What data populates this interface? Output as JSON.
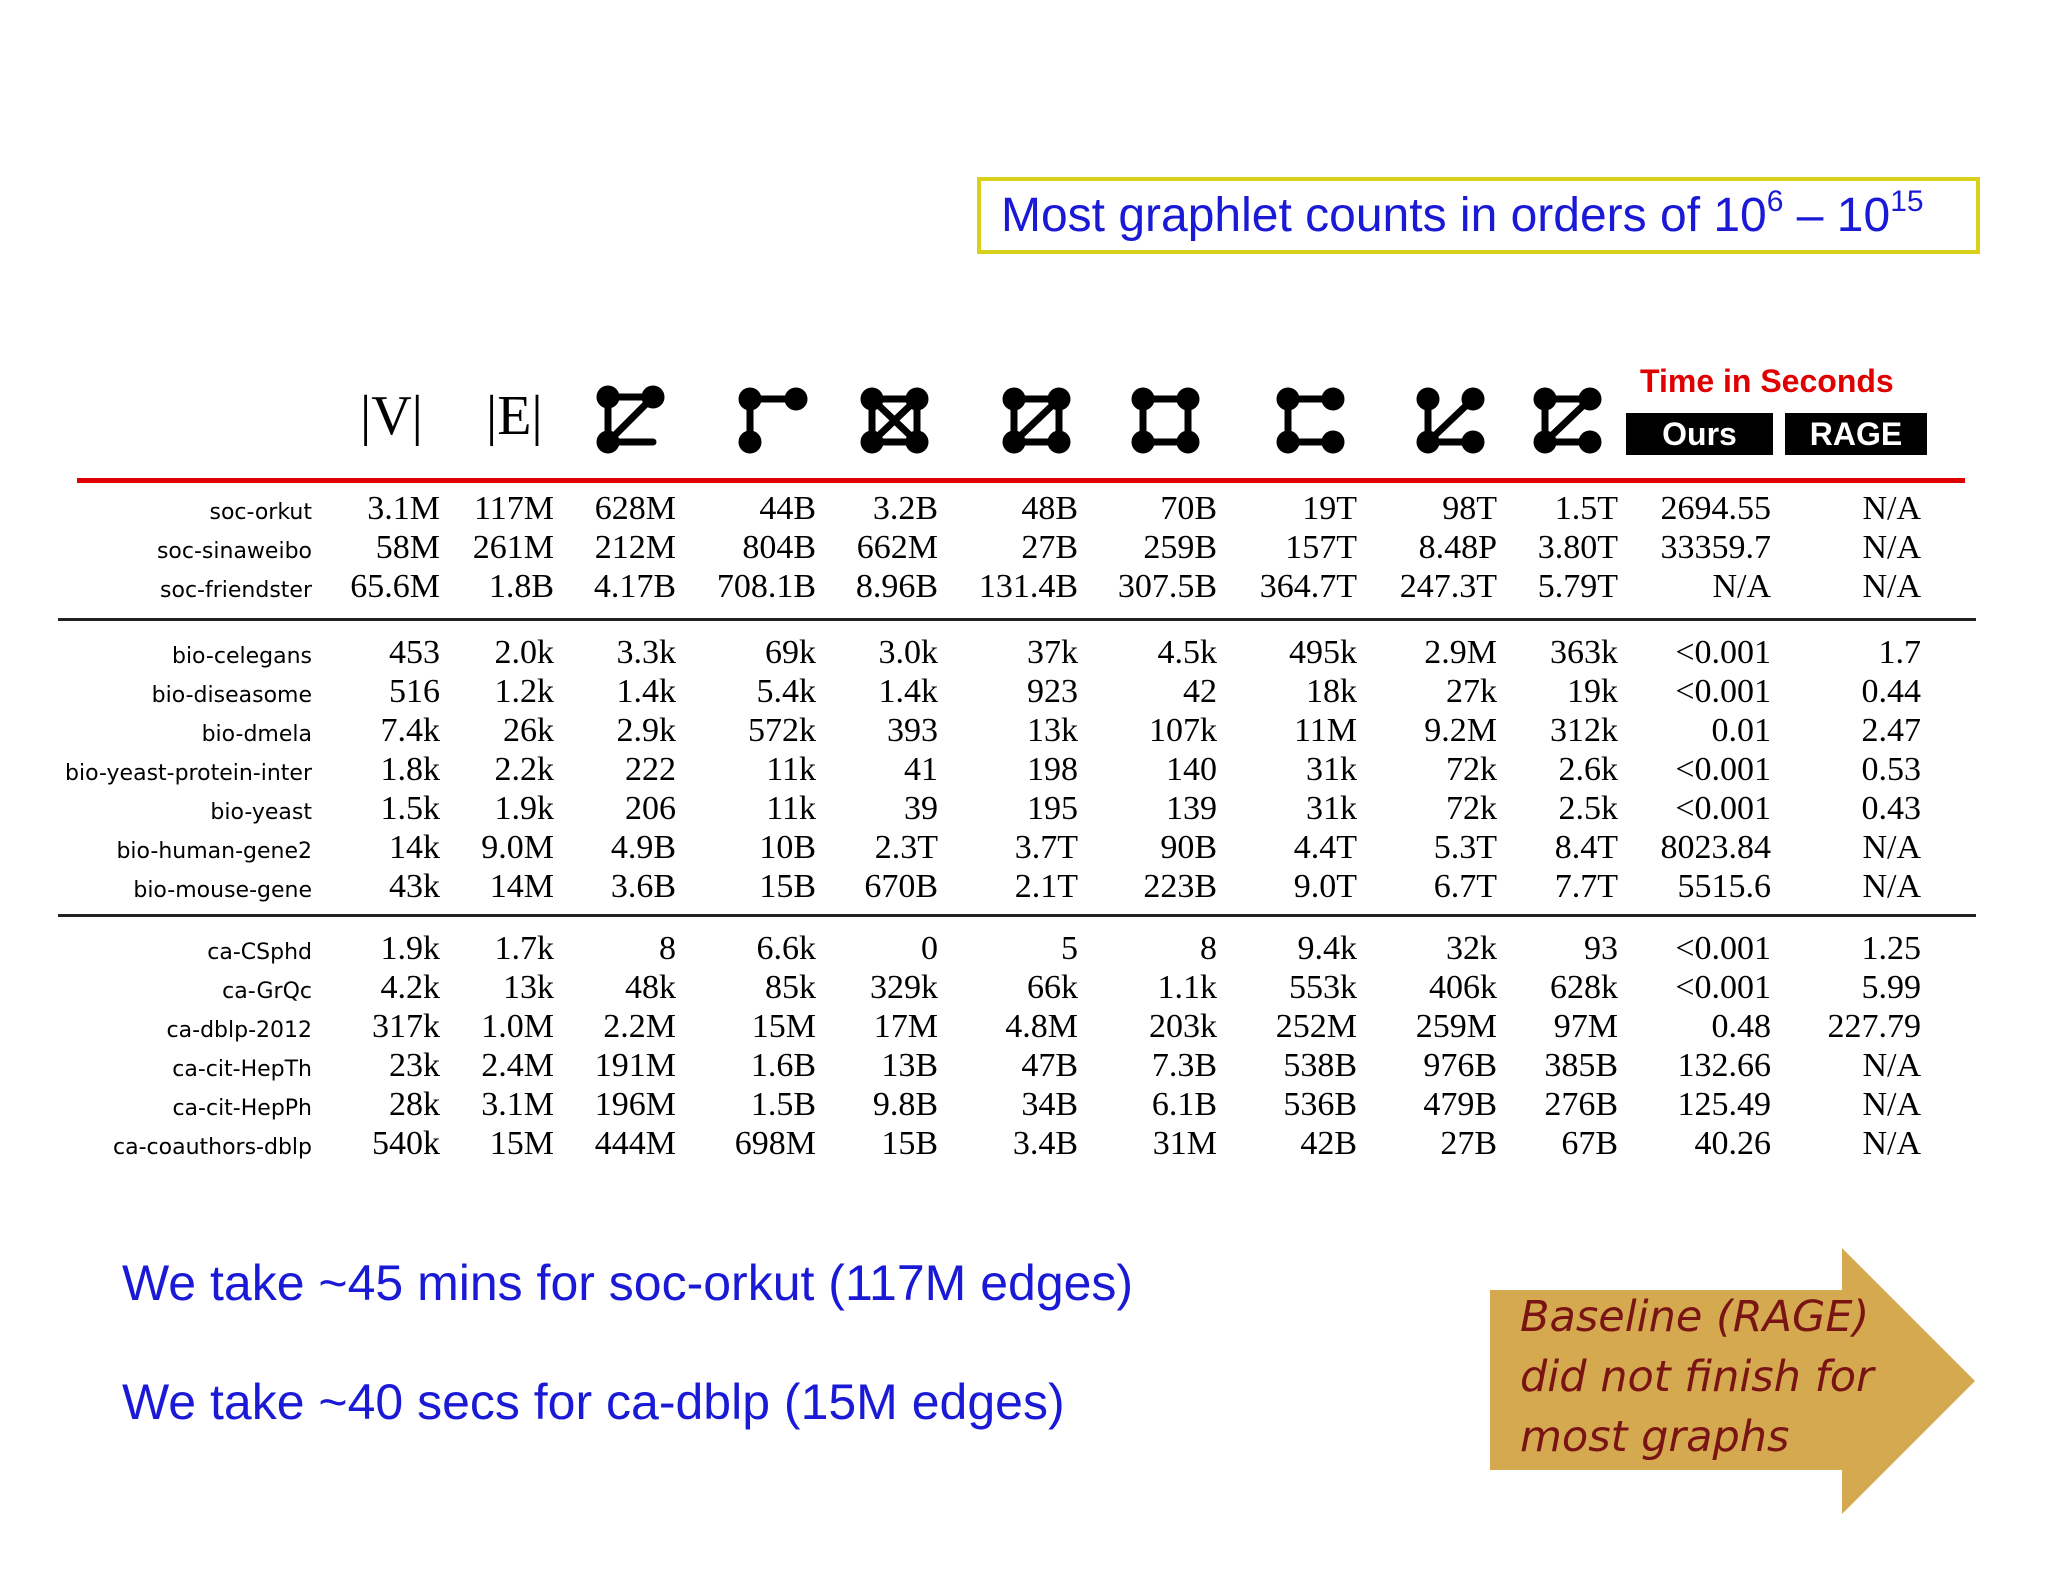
{
  "callout": {
    "text": "Most graphlet counts in orders of 10",
    "exp1": "6",
    "dash": " – 10",
    "exp2": "15"
  },
  "header": {
    "v_label": "|V|",
    "e_label": "|E|",
    "graphlet_icons": [
      "triangle-tail-icon",
      "three-path-icon",
      "four-clique-icon",
      "chordal-cycle-icon",
      "four-cycle-icon",
      "four-path-icon",
      "tailed-triangle-icon",
      "three-star-icon"
    ],
    "time_title": "Time in Seconds",
    "ours_label": "Ours",
    "rage_label": "RAGE"
  },
  "groups": [
    {
      "rows": [
        {
          "name": "soc-orkut",
          "cells": [
            "3.1M",
            "117M",
            "628M",
            "44B",
            "3.2B",
            "48B",
            "70B",
            "19T",
            "98T",
            "1.5T",
            "2694.55",
            "N/A"
          ]
        },
        {
          "name": "soc-sinaweibo",
          "cells": [
            "58M",
            "261M",
            "212M",
            "804B",
            "662M",
            "27B",
            "259B",
            "157T",
            "8.48P",
            "3.80T",
            "33359.7",
            "N/A"
          ]
        },
        {
          "name": "soc-friendster",
          "cells": [
            "65.6M",
            "1.8B",
            "4.17B",
            "708.1B",
            "8.96B",
            "131.4B",
            "307.5B",
            "364.7T",
            "247.3T",
            "5.79T",
            "N/A",
            "N/A"
          ]
        }
      ]
    },
    {
      "rows": [
        {
          "name": "bio-celegans",
          "cells": [
            "453",
            "2.0k",
            "3.3k",
            "69k",
            "3.0k",
            "37k",
            "4.5k",
            "495k",
            "2.9M",
            "363k",
            "<0.001",
            "1.7"
          ]
        },
        {
          "name": "bio-diseasome",
          "cells": [
            "516",
            "1.2k",
            "1.4k",
            "5.4k",
            "1.4k",
            "923",
            "42",
            "18k",
            "27k",
            "19k",
            "<0.001",
            "0.44"
          ]
        },
        {
          "name": "bio-dmela",
          "cells": [
            "7.4k",
            "26k",
            "2.9k",
            "572k",
            "393",
            "13k",
            "107k",
            "11M",
            "9.2M",
            "312k",
            "0.01",
            "2.47"
          ]
        },
        {
          "name": "bio-yeast-protein-inter",
          "cells": [
            "1.8k",
            "2.2k",
            "222",
            "11k",
            "41",
            "198",
            "140",
            "31k",
            "72k",
            "2.6k",
            "<0.001",
            "0.53"
          ]
        },
        {
          "name": "bio-yeast",
          "cells": [
            "1.5k",
            "1.9k",
            "206",
            "11k",
            "39",
            "195",
            "139",
            "31k",
            "72k",
            "2.5k",
            "<0.001",
            "0.43"
          ]
        },
        {
          "name": "bio-human-gene2",
          "cells": [
            "14k",
            "9.0M",
            "4.9B",
            "10B",
            "2.3T",
            "3.7T",
            "90B",
            "4.4T",
            "5.3T",
            "8.4T",
            "8023.84",
            "N/A"
          ]
        },
        {
          "name": "bio-mouse-gene",
          "cells": [
            "43k",
            "14M",
            "3.6B",
            "15B",
            "670B",
            "2.1T",
            "223B",
            "9.0T",
            "6.7T",
            "7.7T",
            "5515.6",
            "N/A"
          ]
        }
      ]
    },
    {
      "rows": [
        {
          "name": "ca-CSphd",
          "cells": [
            "1.9k",
            "1.7k",
            "8",
            "6.6k",
            "0",
            "5",
            "8",
            "9.4k",
            "32k",
            "93",
            "<0.001",
            "1.25"
          ]
        },
        {
          "name": "ca-GrQc",
          "cells": [
            "4.2k",
            "13k",
            "48k",
            "85k",
            "329k",
            "66k",
            "1.1k",
            "553k",
            "406k",
            "628k",
            "<0.001",
            "5.99"
          ]
        },
        {
          "name": "ca-dblp-2012",
          "cells": [
            "317k",
            "1.0M",
            "2.2M",
            "15M",
            "17M",
            "4.8M",
            "203k",
            "252M",
            "259M",
            "97M",
            "0.48",
            "227.79"
          ]
        },
        {
          "name": "ca-cit-HepTh",
          "cells": [
            "23k",
            "2.4M",
            "191M",
            "1.6B",
            "13B",
            "47B",
            "7.3B",
            "538B",
            "976B",
            "385B",
            "132.66",
            "N/A"
          ]
        },
        {
          "name": "ca-cit-HepPh",
          "cells": [
            "28k",
            "3.1M",
            "196M",
            "1.5B",
            "9.8B",
            "34B",
            "6.1B",
            "536B",
            "479B",
            "276B",
            "125.49",
            "N/A"
          ]
        },
        {
          "name": "ca-coauthors-dblp",
          "cells": [
            "540k",
            "15M",
            "444M",
            "698M",
            "15B",
            "3.4B",
            "31M",
            "42B",
            "27B",
            "67B",
            "40.26",
            "N/A"
          ]
        }
      ]
    }
  ],
  "notes": {
    "line1": "We take ~45 mins for soc-orkut (117M edges)",
    "line2": "We take ~40 secs for ca-dblp (15M edges)"
  },
  "arrow": {
    "line1": "Baseline (RAGE)",
    "line2": "did not finish for",
    "line3": "most graphs",
    "color": "#d4a94f"
  }
}
